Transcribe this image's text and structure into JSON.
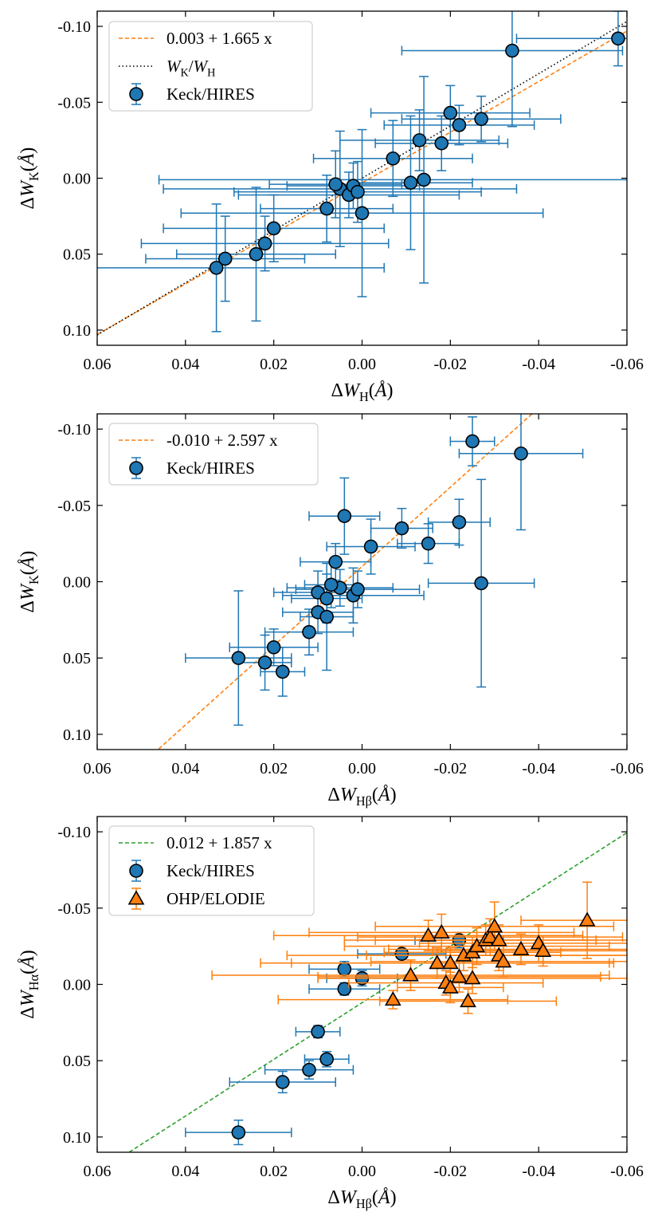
{
  "colors": {
    "blue": "#1f77b4",
    "orange": "#ff7f0e",
    "green": "#2ca02c",
    "black": "#000000"
  },
  "chart_data": [
    {
      "type": "scatter",
      "xlabel": "ΔW_H(Å)",
      "ylabel": "ΔW_K(Å)",
      "xlim": [
        0.06,
        -0.06
      ],
      "ylim": [
        0.11,
        -0.11
      ],
      "xticks": [
        "0.06",
        "0.04",
        "0.02",
        "0.00",
        "-0.02",
        "-0.04",
        "-0.06"
      ],
      "xtick_values": [
        0.06,
        0.04,
        0.02,
        0.0,
        -0.02,
        -0.04,
        -0.06
      ],
      "yticks": [
        "-0.10",
        "-0.05",
        "0.00",
        "0.05",
        "0.10"
      ],
      "ytick_values": [
        -0.1,
        -0.05,
        0.0,
        0.05,
        0.1
      ],
      "legend": "upper left",
      "lines": [
        {
          "name": "0.003 + 1.665 x",
          "intercept": 0.003,
          "slope": 1.665,
          "color": "#ff7f0e",
          "style": "dashed"
        },
        {
          "name": "W_K/W_H",
          "intercept": 0.0,
          "slope": 1.72,
          "color": "#000000",
          "style": "dotted"
        }
      ],
      "series": [
        {
          "name": "Keck/HIRES",
          "marker": "circle",
          "color": "#1f77b4",
          "points": [
            {
              "x": 0.033,
              "y": 0.059,
              "xerr": 0.038,
              "yerr": 0.042
            },
            {
              "x": 0.031,
              "y": 0.053,
              "xerr": 0.018,
              "yerr": 0.028
            },
            {
              "x": 0.024,
              "y": 0.05,
              "xerr": 0.018,
              "yerr": 0.044
            },
            {
              "x": 0.022,
              "y": 0.043,
              "xerr": 0.028,
              "yerr": 0.018
            },
            {
              "x": 0.02,
              "y": 0.033,
              "xerr": 0.025,
              "yerr": 0.022
            },
            {
              "x": 0.008,
              "y": 0.02,
              "xerr": 0.015,
              "yerr": 0.022
            },
            {
              "x": 0.005,
              "y": 0.007,
              "xerr": 0.04,
              "yerr": 0.038
            },
            {
              "x": 0.006,
              "y": 0.004,
              "xerr": 0.015,
              "yerr": 0.022
            },
            {
              "x": 0.003,
              "y": 0.011,
              "xerr": 0.025,
              "yerr": 0.015
            },
            {
              "x": 0.002,
              "y": 0.005,
              "xerr": 0.015,
              "yerr": 0.015
            },
            {
              "x": 0.001,
              "y": 0.009,
              "xerr": 0.028,
              "yerr": 0.02
            },
            {
              "x": 0.0,
              "y": 0.023,
              "xerr": 0.041,
              "yerr": 0.055
            },
            {
              "x": -0.007,
              "y": -0.013,
              "xerr": 0.018,
              "yerr": 0.025
            },
            {
              "x": -0.011,
              "y": 0.003,
              "xerr": 0.014,
              "yerr": 0.044
            },
            {
              "x": -0.014,
              "y": 0.001,
              "xerr": 0.06,
              "yerr": 0.068
            },
            {
              "x": -0.013,
              "y": -0.025,
              "xerr": 0.018,
              "yerr": 0.02
            },
            {
              "x": -0.018,
              "y": -0.023,
              "xerr": 0.015,
              "yerr": 0.018
            },
            {
              "x": -0.02,
              "y": -0.043,
              "xerr": 0.018,
              "yerr": 0.018
            },
            {
              "x": -0.022,
              "y": -0.035,
              "xerr": 0.017,
              "yerr": 0.013
            },
            {
              "x": -0.027,
              "y": -0.039,
              "xerr": 0.018,
              "yerr": 0.015
            },
            {
              "x": -0.034,
              "y": -0.084,
              "xerr": 0.025,
              "yerr": 0.05
            },
            {
              "x": -0.058,
              "y": -0.092,
              "xerr": 0.023,
              "yerr": 0.018
            }
          ]
        }
      ]
    },
    {
      "type": "scatter",
      "xlabel": "ΔW_Hβ(Å)",
      "ylabel": "ΔW_K(Å)",
      "xlim": [
        0.06,
        -0.06
      ],
      "ylim": [
        0.11,
        -0.11
      ],
      "xticks": [
        "0.06",
        "0.04",
        "0.02",
        "0.00",
        "-0.02",
        "-0.04",
        "-0.06"
      ],
      "xtick_values": [
        0.06,
        0.04,
        0.02,
        0.0,
        -0.02,
        -0.04,
        -0.06
      ],
      "yticks": [
        "-0.10",
        "-0.05",
        "0.00",
        "0.05",
        "0.10"
      ],
      "ytick_values": [
        -0.1,
        -0.05,
        0.0,
        0.05,
        0.1
      ],
      "legend": "upper left",
      "lines": [
        {
          "name": "-0.010 + 2.597 x",
          "intercept": -0.01,
          "slope": 2.597,
          "color": "#ff7f0e",
          "style": "dashed"
        }
      ],
      "series": [
        {
          "name": "Keck/HIRES",
          "marker": "circle",
          "color": "#1f77b4",
          "points": [
            {
              "x": 0.028,
              "y": 0.05,
              "xerr": 0.012,
              "yerr": 0.044
            },
            {
              "x": 0.022,
              "y": 0.053,
              "xerr": 0.006,
              "yerr": 0.018
            },
            {
              "x": 0.02,
              "y": 0.043,
              "xerr": 0.01,
              "yerr": 0.012
            },
            {
              "x": 0.018,
              "y": 0.059,
              "xerr": 0.005,
              "yerr": 0.016
            },
            {
              "x": 0.012,
              "y": 0.033,
              "xerr": 0.01,
              "yerr": 0.015
            },
            {
              "x": 0.01,
              "y": 0.02,
              "xerr": 0.008,
              "yerr": 0.014
            },
            {
              "x": 0.008,
              "y": 0.023,
              "xerr": 0.006,
              "yerr": 0.035
            },
            {
              "x": 0.01,
              "y": 0.007,
              "xerr": 0.01,
              "yerr": 0.014
            },
            {
              "x": 0.008,
              "y": 0.011,
              "xerr": 0.008,
              "yerr": 0.016
            },
            {
              "x": 0.005,
              "y": 0.004,
              "xerr": 0.012,
              "yerr": 0.012
            },
            {
              "x": 0.007,
              "y": 0.002,
              "xerr": 0.006,
              "yerr": 0.015
            },
            {
              "x": 0.004,
              "y": -0.043,
              "xerr": 0.008,
              "yerr": 0.025
            },
            {
              "x": 0.002,
              "y": 0.009,
              "xerr": 0.016,
              "yerr": 0.018
            },
            {
              "x": 0.006,
              "y": -0.013,
              "xerr": 0.008,
              "yerr": 0.012
            },
            {
              "x": 0.001,
              "y": 0.005,
              "xerr": 0.014,
              "yerr": 0.012
            },
            {
              "x": -0.002,
              "y": -0.023,
              "xerr": 0.01,
              "yerr": 0.018
            },
            {
              "x": -0.009,
              "y": -0.035,
              "xerr": 0.007,
              "yerr": 0.013
            },
            {
              "x": -0.015,
              "y": -0.025,
              "xerr": 0.007,
              "yerr": 0.013
            },
            {
              "x": -0.022,
              "y": -0.039,
              "xerr": 0.007,
              "yerr": 0.015
            },
            {
              "x": -0.025,
              "y": -0.092,
              "xerr": 0.005,
              "yerr": 0.016
            },
            {
              "x": -0.027,
              "y": 0.001,
              "xerr": 0.012,
              "yerr": 0.068
            },
            {
              "x": -0.036,
              "y": -0.084,
              "xerr": 0.014,
              "yerr": 0.05
            }
          ]
        }
      ]
    },
    {
      "type": "scatter",
      "xlabel": "ΔW_Hβ(Å)",
      "ylabel": "ΔW_Hα(Å)",
      "xlim": [
        0.06,
        -0.06
      ],
      "ylim": [
        0.11,
        -0.11
      ],
      "xticks": [
        "0.06",
        "0.04",
        "0.02",
        "0.00",
        "-0.02",
        "-0.04",
        "-0.06"
      ],
      "xtick_values": [
        0.06,
        0.04,
        0.02,
        0.0,
        -0.02,
        -0.04,
        -0.06
      ],
      "yticks": [
        "-0.10",
        "-0.05",
        "0.00",
        "0.05",
        "0.10"
      ],
      "ytick_values": [
        -0.1,
        -0.05,
        0.0,
        0.05,
        0.1
      ],
      "legend": "upper left",
      "lines": [
        {
          "name": "0.012 + 1.857 x",
          "intercept": 0.012,
          "slope": 1.857,
          "color": "#2ca02c",
          "style": "dashed"
        }
      ],
      "series": [
        {
          "name": "Keck/HIRES",
          "marker": "circle",
          "color": "#1f77b4",
          "points": [
            {
              "x": 0.028,
              "y": 0.097,
              "xerr": 0.012,
              "yerr": 0.008
            },
            {
              "x": 0.018,
              "y": 0.064,
              "xerr": 0.012,
              "yerr": 0.007
            },
            {
              "x": 0.012,
              "y": 0.056,
              "xerr": 0.01,
              "yerr": 0.006
            },
            {
              "x": 0.008,
              "y": 0.049,
              "xerr": 0.005,
              "yerr": 0.005
            },
            {
              "x": 0.01,
              "y": 0.031,
              "xerr": 0.005,
              "yerr": 0.004
            },
            {
              "x": 0.004,
              "y": -0.01,
              "xerr": 0.008,
              "yerr": 0.005
            },
            {
              "x": 0.004,
              "y": 0.003,
              "xerr": 0.008,
              "yerr": 0.004
            },
            {
              "x": 0.0,
              "y": -0.004,
              "xerr": 0.008,
              "yerr": 0.005
            },
            {
              "x": -0.009,
              "y": -0.02,
              "xerr": 0.01,
              "yerr": 0.005
            },
            {
              "x": -0.022,
              "y": -0.029,
              "xerr": 0.01,
              "yerr": 0.005
            }
          ]
        },
        {
          "name": "OHP/ELODIE",
          "marker": "triangle",
          "color": "#ff7f0e",
          "points": [
            {
              "x": -0.007,
              "y": 0.01,
              "xerr": 0.026,
              "yerr": 0.006
            },
            {
              "x": -0.011,
              "y": -0.006,
              "xerr": 0.045,
              "yerr": 0.01
            },
            {
              "x": -0.015,
              "y": -0.032,
              "xerr": 0.035,
              "yerr": 0.01
            },
            {
              "x": -0.017,
              "y": -0.014,
              "xerr": 0.04,
              "yerr": 0.01
            },
            {
              "x": -0.018,
              "y": -0.034,
              "xerr": 0.03,
              "yerr": 0.012
            },
            {
              "x": -0.019,
              "y": -0.001,
              "xerr": 0.022,
              "yerr": 0.008
            },
            {
              "x": -0.02,
              "y": -0.014,
              "xerr": 0.036,
              "yerr": 0.01
            },
            {
              "x": -0.02,
              "y": 0.002,
              "xerr": 0.012,
              "yerr": 0.01
            },
            {
              "x": -0.022,
              "y": -0.005,
              "xerr": 0.032,
              "yerr": 0.01
            },
            {
              "x": -0.023,
              "y": -0.019,
              "xerr": 0.04,
              "yerr": 0.01
            },
            {
              "x": -0.024,
              "y": 0.011,
              "xerr": 0.02,
              "yerr": 0.008
            },
            {
              "x": -0.025,
              "y": -0.004,
              "xerr": 0.035,
              "yerr": 0.01
            },
            {
              "x": -0.025,
              "y": -0.021,
              "xerr": 0.02,
              "yerr": 0.01
            },
            {
              "x": -0.026,
              "y": -0.025,
              "xerr": 0.03,
              "yerr": 0.012
            },
            {
              "x": -0.028,
              "y": -0.029,
              "xerr": 0.025,
              "yerr": 0.01
            },
            {
              "x": -0.029,
              "y": -0.031,
              "xerr": 0.03,
              "yerr": 0.012
            },
            {
              "x": -0.03,
              "y": -0.038,
              "xerr": 0.027,
              "yerr": 0.016
            },
            {
              "x": -0.031,
              "y": -0.029,
              "xerr": 0.035,
              "yerr": 0.01
            },
            {
              "x": -0.031,
              "y": -0.019,
              "xerr": 0.03,
              "yerr": 0.01
            },
            {
              "x": -0.032,
              "y": -0.015,
              "xerr": 0.03,
              "yerr": 0.01
            },
            {
              "x": -0.036,
              "y": -0.023,
              "xerr": 0.03,
              "yerr": 0.01
            },
            {
              "x": -0.04,
              "y": -0.027,
              "xerr": 0.027,
              "yerr": 0.012
            },
            {
              "x": -0.041,
              "y": -0.022,
              "xerr": 0.025,
              "yerr": 0.01
            },
            {
              "x": -0.051,
              "y": -0.042,
              "xerr": 0.015,
              "yerr": 0.025
            }
          ]
        }
      ]
    }
  ]
}
